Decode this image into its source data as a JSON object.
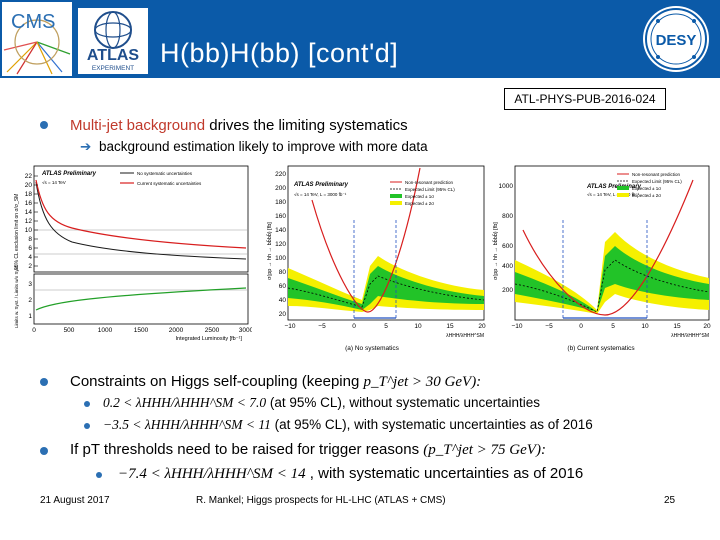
{
  "header": {
    "title": "H(bb)H(bb) [cont'd]",
    "reference": "ATL-PHYS-PUB-2016-024",
    "logos": {
      "cms": "CMS",
      "atlas": "ATLAS",
      "atlas_sub": "EXPERIMENT",
      "desy": "DESY"
    },
    "accent_color": "#0b5aa8"
  },
  "bullets": {
    "b1_red": "Multi-jet background",
    "b1_rest": "drives the limiting systematics",
    "b1_sub": "background estimation likely to improve with more data",
    "b2_lead": "Constraints on Higgs self-coupling (keeping",
    "b2_math": "p_T^jet > 30 GeV):",
    "b2_sub1_math": "0.2 < λHHH/λHHH^SM < 7.0",
    "b2_sub1_text": "(at 95% CL), without systematic uncertainties",
    "b2_sub2_math": "−3.5 < λHHH/λHHH^SM < 11",
    "b2_sub2_text": "(at 95% CL), with systematic uncertainties as of 2016",
    "b3_lead": "If pT thresholds need to be raised for trigger reasons",
    "b3_math": "(p_T^jet > 75 GeV):",
    "b3_sub_math": "−7.4 < λHHH/λHHH^SM < 14",
    "b3_sub_text": ", with systematic uncertainties as of 2016"
  },
  "footer": {
    "date": "21 August 2017",
    "center": "R. Mankel; Higgs prospects for HL-LHC (ATLAS + CMS)",
    "page": "25"
  },
  "plots": {
    "left": {
      "brand": "ATLAS Preliminary",
      "energy": "√s = 14 TeV",
      "legend": [
        "No systematic uncertainties",
        "Current systematic uncertainties"
      ],
      "ylabel_top": "95% CL exclusion limit on σ/σ_SM",
      "ylabel_bottom": "Limits w. Syst. / Limits w/o Syst.",
      "xlabel": "Integrated Luminosity [fb⁻¹]",
      "xticks": [
        "0",
        "500",
        "1000",
        "1500",
        "2000",
        "2500",
        "3000"
      ],
      "yticks_top": [
        "22",
        "20",
        "18",
        "16",
        "14",
        "12",
        "10",
        "8",
        "6",
        "4",
        "2"
      ],
      "yticks_bottom": [
        "3",
        "2",
        "1"
      ]
    },
    "middle": {
      "brand": "ATLAS Preliminary",
      "energy": "√s = 14 TeV, L = 3000 fb⁻¹",
      "legend": [
        "Non-resonant prediction",
        "Expected Limit (95% CL)",
        "Expected ± 1σ",
        "Expected ± 2σ"
      ],
      "ylabel": "σ(pp → hh → bb̄bb̄) [fb]",
      "xlabel": "λHHH/λHHH^SM",
      "xticks": [
        "−10",
        "−5",
        "0",
        "5",
        "10",
        "15",
        "20"
      ],
      "yticks": [
        "220",
        "200",
        "180",
        "160",
        "140",
        "120",
        "100",
        "80",
        "60",
        "40",
        "20"
      ],
      "caption": "(a) No systematics"
    },
    "right": {
      "brand": "ATLAS Preliminary",
      "energy": "√s = 14 TeV, L = 3000 fb⁻¹",
      "legend": [
        "Non-resonant prediction",
        "Expected Limit (95% CL)",
        "Expected ± 1σ",
        "Expected ± 2σ"
      ],
      "ylabel": "σ(pp → hh → bb̄bb̄) [fb]",
      "xlabel": "λHHH/λHHH^SM",
      "xticks": [
        "−10",
        "−5",
        "0",
        "5",
        "10",
        "15",
        "20"
      ],
      "yticks": [
        "1000",
        "800",
        "600",
        "400",
        "200"
      ],
      "caption": "(b) Current systematics"
    }
  },
  "colors": {
    "band2": "#f5f000",
    "band1": "#22c328",
    "prediction": "#d81e1e",
    "bullet": "#2b6fb3",
    "highlight": "#c0392b"
  }
}
